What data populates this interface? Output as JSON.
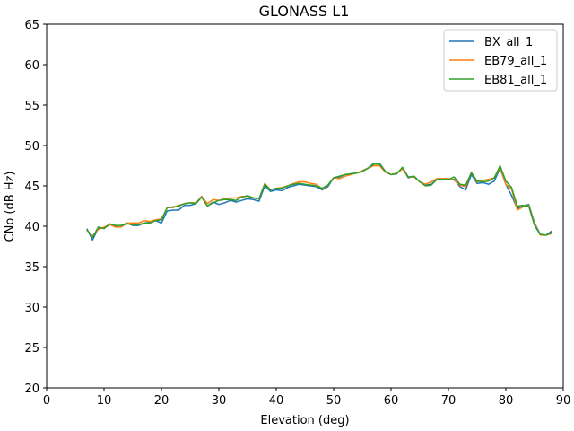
{
  "chart_data": {
    "type": "line",
    "title": "GLONASS L1",
    "xlabel": "Elevation (deg)",
    "ylabel": "CNo (dB Hz)",
    "xlim": [
      0,
      90
    ],
    "ylim": [
      20,
      65
    ],
    "xticks": [
      0,
      10,
      20,
      30,
      40,
      50,
      60,
      70,
      80,
      90
    ],
    "yticks": [
      20,
      25,
      30,
      35,
      40,
      45,
      50,
      55,
      60,
      65
    ],
    "grid": false,
    "legend_position": "top-right",
    "x": [
      7,
      8,
      9,
      10,
      11,
      12,
      13,
      14,
      15,
      16,
      17,
      18,
      19,
      20,
      21,
      22,
      23,
      24,
      25,
      26,
      27,
      28,
      29,
      30,
      31,
      32,
      33,
      34,
      35,
      36,
      37,
      38,
      39,
      40,
      41,
      42,
      43,
      44,
      45,
      46,
      47,
      48,
      49,
      50,
      51,
      52,
      53,
      54,
      55,
      56,
      57,
      58,
      59,
      60,
      61,
      62,
      63,
      64,
      65,
      66,
      67,
      68,
      69,
      70,
      71,
      72,
      73,
      74,
      75,
      76,
      77,
      78,
      79,
      80,
      81,
      82,
      83,
      84,
      85,
      86,
      87,
      88
    ],
    "series": [
      {
        "name": "BX_all_1",
        "color": "#1f77b4",
        "values": [
          39.7,
          38.3,
          39.8,
          39.8,
          40.2,
          40.0,
          40.1,
          40.4,
          40.1,
          40.1,
          40.4,
          40.5,
          40.7,
          40.4,
          41.9,
          42.0,
          42.0,
          42.6,
          42.6,
          42.8,
          43.7,
          42.5,
          43.0,
          42.7,
          42.9,
          43.2,
          43.0,
          43.2,
          43.4,
          43.3,
          43.1,
          45.0,
          44.3,
          44.5,
          44.4,
          44.8,
          45.0,
          45.2,
          45.1,
          45.0,
          44.9,
          44.5,
          44.9,
          46.0,
          46.1,
          46.4,
          46.5,
          46.6,
          46.8,
          47.2,
          47.8,
          47.8,
          46.8,
          46.4,
          46.5,
          47.2,
          46.0,
          46.2,
          45.5,
          45.1,
          45.2,
          45.8,
          45.9,
          45.8,
          45.8,
          44.9,
          44.5,
          46.4,
          45.3,
          45.4,
          45.2,
          45.6,
          47.2,
          45.2,
          43.8,
          42.2,
          42.5,
          42.7,
          40.4,
          39.0,
          38.9,
          39.4
        ]
      },
      {
        "name": "EB79_all_1",
        "color": "#ff7f0e",
        "values": [
          39.5,
          38.8,
          39.6,
          39.9,
          40.2,
          39.9,
          39.9,
          40.4,
          40.4,
          40.4,
          40.7,
          40.6,
          40.8,
          40.9,
          42.3,
          42.3,
          42.6,
          42.8,
          42.9,
          42.9,
          43.7,
          42.8,
          43.3,
          43.2,
          43.4,
          43.5,
          43.5,
          43.7,
          43.7,
          43.5,
          43.4,
          45.3,
          44.5,
          44.7,
          44.8,
          45.0,
          45.3,
          45.5,
          45.5,
          45.3,
          45.2,
          44.6,
          45.1,
          46.0,
          45.9,
          46.2,
          46.4,
          46.6,
          46.9,
          47.2,
          47.5,
          47.5,
          46.7,
          46.4,
          46.6,
          47.1,
          46.1,
          46.1,
          45.5,
          45.2,
          45.5,
          45.9,
          45.9,
          45.9,
          45.7,
          45.1,
          44.9,
          46.7,
          45.5,
          45.7,
          45.8,
          46.0,
          47.3,
          45.2,
          44.6,
          42.0,
          42.4,
          42.6,
          40.3,
          38.9,
          38.9,
          39.1
        ]
      },
      {
        "name": "EB81_all_1",
        "color": "#2ca02c",
        "values": [
          39.6,
          38.6,
          39.9,
          39.7,
          40.3,
          40.1,
          40.1,
          40.3,
          40.2,
          40.2,
          40.4,
          40.4,
          40.7,
          40.8,
          42.3,
          42.4,
          42.5,
          42.8,
          42.9,
          42.8,
          43.6,
          42.5,
          42.9,
          43.2,
          43.3,
          43.3,
          43.2,
          43.6,
          43.8,
          43.5,
          43.4,
          45.2,
          44.5,
          44.7,
          44.7,
          45.0,
          45.2,
          45.3,
          45.2,
          45.1,
          45.0,
          44.7,
          45.1,
          46.0,
          46.2,
          46.4,
          46.5,
          46.6,
          46.8,
          47.2,
          47.7,
          47.7,
          46.8,
          46.4,
          46.5,
          47.3,
          46.1,
          46.2,
          45.5,
          45.0,
          45.1,
          45.8,
          45.8,
          45.8,
          46.1,
          45.2,
          45.1,
          46.6,
          45.6,
          45.5,
          45.6,
          46.0,
          47.5,
          45.6,
          44.8,
          42.5,
          42.6,
          42.5,
          40.1,
          39.0,
          38.9,
          39.2
        ]
      }
    ]
  }
}
